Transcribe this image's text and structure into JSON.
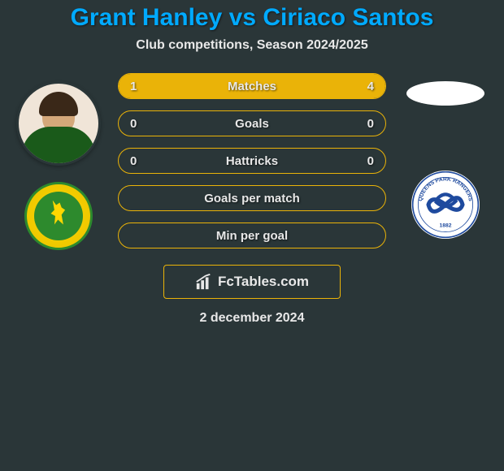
{
  "title": "Grant Hanley vs Ciriaco Santos",
  "subtitle": "Club competitions, Season 2024/2025",
  "date": "2 december 2024",
  "logo_text": "FcTables.com",
  "colors": {
    "background": "#2a3638",
    "title": "#00aaff",
    "accent": "#eab308",
    "text": "#e8e8e8"
  },
  "player_left": {
    "name": "Grant Hanley",
    "club": "Norwich City"
  },
  "player_right": {
    "name": "Ciriaco Santos",
    "club": "Queens Park Rangers"
  },
  "stats": [
    {
      "label": "Matches",
      "left_value": "1",
      "right_value": "4",
      "left_fill_pct": 20,
      "right_fill_pct": 80
    },
    {
      "label": "Goals",
      "left_value": "0",
      "right_value": "0",
      "left_fill_pct": 0,
      "right_fill_pct": 0
    },
    {
      "label": "Hattricks",
      "left_value": "0",
      "right_value": "0",
      "left_fill_pct": 0,
      "right_fill_pct": 0
    },
    {
      "label": "Goals per match",
      "left_value": "",
      "right_value": "",
      "left_fill_pct": 0,
      "right_fill_pct": 0
    },
    {
      "label": "Min per goal",
      "left_value": "",
      "right_value": "",
      "left_fill_pct": 0,
      "right_fill_pct": 0
    }
  ]
}
